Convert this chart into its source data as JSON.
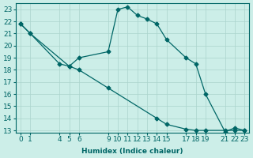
{
  "xlabel": "Humidex (Indice chaleur)",
  "background_color": "#cceee8",
  "grid_color": "#aad4cc",
  "line_color": "#006666",
  "line1_x": [
    0,
    1,
    4,
    5,
    6,
    9,
    10,
    11,
    12,
    13,
    14,
    15,
    17,
    18,
    19,
    21,
    22,
    23
  ],
  "line1_y": [
    21.8,
    21.0,
    18.5,
    18.3,
    19.0,
    19.5,
    23.0,
    23.2,
    22.5,
    22.2,
    21.8,
    20.5,
    19.0,
    18.5,
    16.0,
    12.9,
    13.2,
    13.0
  ],
  "line2_x": [
    0,
    1,
    5,
    6,
    9,
    14,
    15,
    17,
    18,
    19,
    21,
    22,
    23
  ],
  "line2_y": [
    21.8,
    21.0,
    18.3,
    18.0,
    16.5,
    14.0,
    13.5,
    13.1,
    13.0,
    13.0,
    13.0,
    13.0,
    13.0
  ],
  "xlim": [
    -0.5,
    23.5
  ],
  "ylim": [
    12.8,
    23.5
  ],
  "xticks": [
    0,
    1,
    4,
    5,
    6,
    9,
    10,
    11,
    12,
    13,
    14,
    15,
    17,
    18,
    19,
    21,
    22,
    23
  ],
  "yticks": [
    13,
    14,
    15,
    16,
    17,
    18,
    19,
    20,
    21,
    22,
    23
  ],
  "marker": "D",
  "markersize": 2.5,
  "linewidth": 0.9,
  "fontsize": 6.5
}
